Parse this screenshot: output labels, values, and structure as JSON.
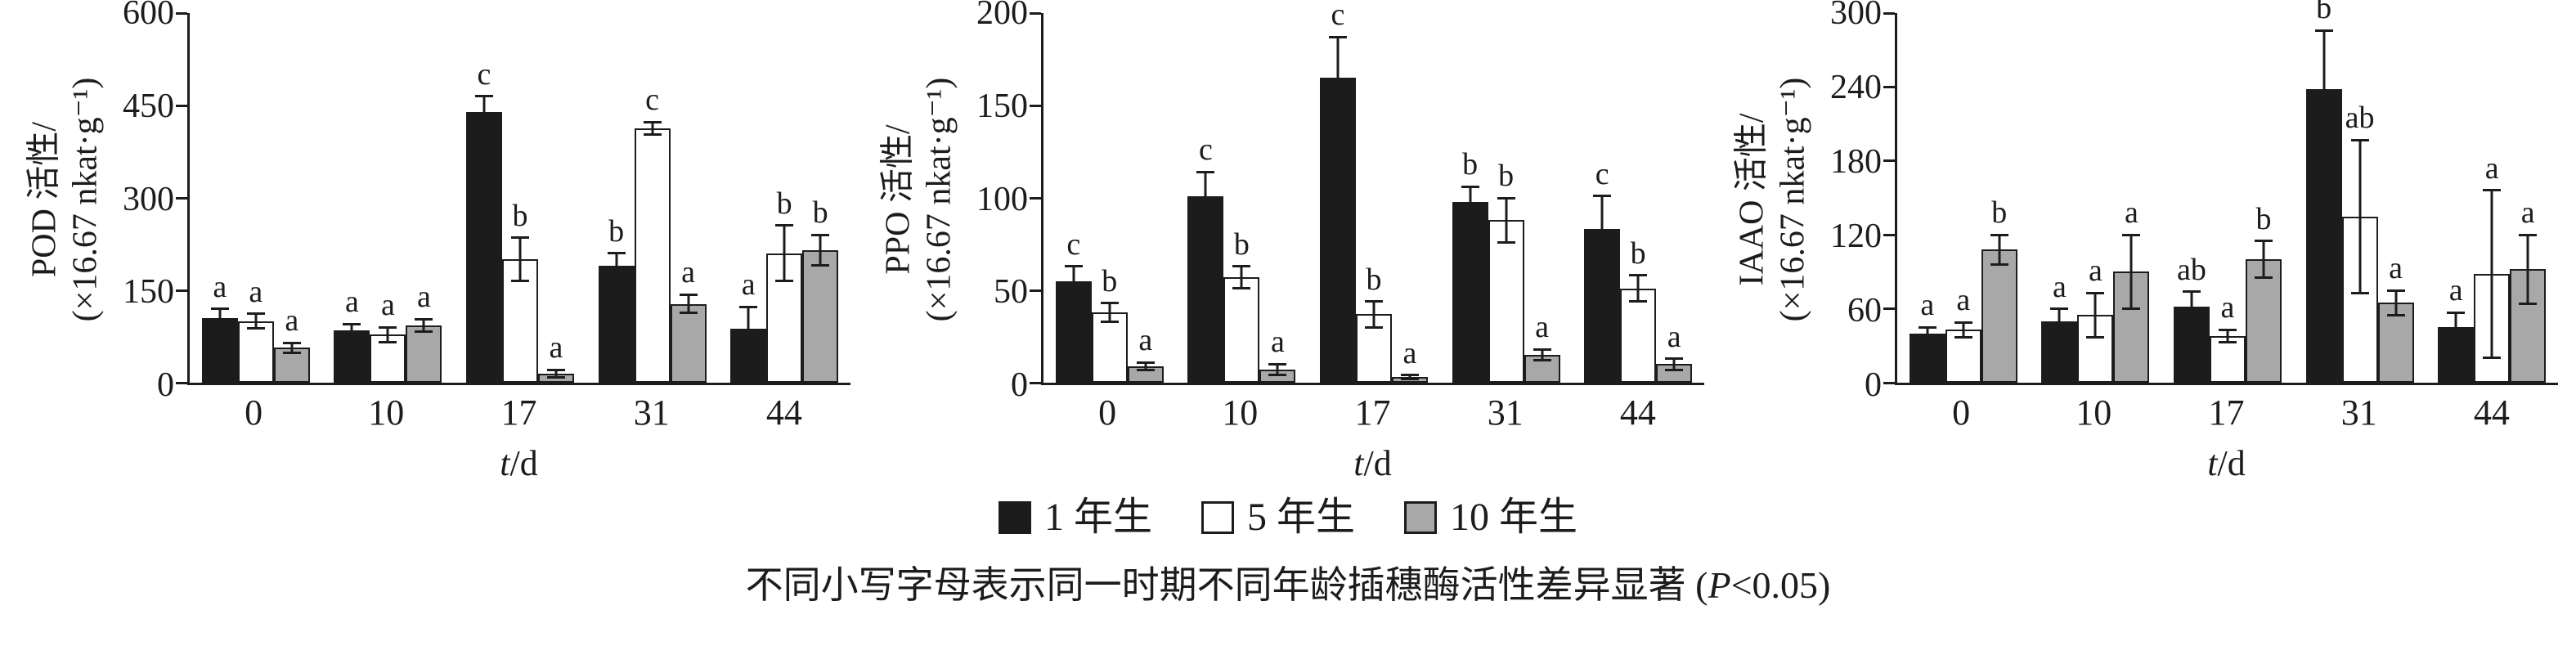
{
  "legend": {
    "items": [
      {
        "label": "1 年生",
        "color": "#1c1c1c",
        "border": "#1c1c1c"
      },
      {
        "label": "5 年生",
        "color": "#ffffff",
        "border": "#1c1c1c"
      },
      {
        "label": "10 年生",
        "color": "#a8a8a8",
        "border": "#1c1c1c"
      }
    ]
  },
  "caption": {
    "prefix": "不同小写字母表示同一时期不同年龄插穗酶活性差异显著 (",
    "italic": "P",
    "suffix": "<0.05)"
  },
  "chart_data": [
    {
      "type": "bar",
      "title": "POD activity",
      "ylabel_line1": "POD 活性/",
      "ylabel_line2": "(×16.67 nkat·g⁻¹)",
      "xlabel_italic": "t",
      "xlabel_rest": "/d",
      "ylim": [
        0,
        600
      ],
      "yticks": [
        0,
        150,
        300,
        450,
        600
      ],
      "categories": [
        "0",
        "10",
        "17",
        "31",
        "44"
      ],
      "grid": false,
      "legend_position": "bottom",
      "series": [
        {
          "name": "1 年生",
          "color": "#1c1c1c",
          "values": [
            105,
            85,
            440,
            190,
            88
          ],
          "errors": [
            15,
            10,
            25,
            20,
            35
          ],
          "letters": [
            "a",
            "a",
            "c",
            "b",
            "a"
          ]
        },
        {
          "name": "5 年生",
          "color": "#ffffff",
          "values": [
            100,
            78,
            200,
            413,
            210
          ],
          "errors": [
            12,
            12,
            35,
            10,
            45
          ],
          "letters": [
            "a",
            "a",
            "b",
            "c",
            "b"
          ]
        },
        {
          "name": "10 年生",
          "color": "#a8a8a8",
          "values": [
            57,
            93,
            15,
            128,
            215
          ],
          "errors": [
            8,
            10,
            6,
            15,
            25
          ],
          "letters": [
            "a",
            "a",
            "a",
            "a",
            "b"
          ]
        }
      ]
    },
    {
      "type": "bar",
      "title": "PPO activity",
      "ylabel_line1": "PPO 活性/",
      "ylabel_line2": "(×16.67 nkat·g⁻¹)",
      "xlabel_italic": "t",
      "xlabel_rest": "/d",
      "ylim": [
        0,
        200
      ],
      "yticks": [
        0,
        50,
        100,
        150,
        200
      ],
      "categories": [
        "0",
        "10",
        "17",
        "31",
        "44"
      ],
      "grid": false,
      "legend_position": "bottom",
      "series": [
        {
          "name": "1 年生",
          "color": "#1c1c1c",
          "values": [
            55,
            101,
            165,
            98,
            83
          ],
          "errors": [
            8,
            13,
            22,
            8,
            18
          ],
          "letters": [
            "c",
            "c",
            "c",
            "b",
            "c"
          ]
        },
        {
          "name": "5 年生",
          "color": "#ffffff",
          "values": [
            38,
            57,
            37,
            88,
            51
          ],
          "errors": [
            5,
            6,
            7,
            12,
            7
          ],
          "letters": [
            "b",
            "b",
            "b",
            "b",
            "b"
          ]
        },
        {
          "name": "10 年生",
          "color": "#a8a8a8",
          "values": [
            9,
            7,
            3,
            15,
            10
          ],
          "errors": [
            2,
            3,
            1,
            3,
            3
          ],
          "letters": [
            "a",
            "a",
            "a",
            "a",
            "a"
          ]
        }
      ]
    },
    {
      "type": "bar",
      "title": "IAAO activity",
      "ylabel_line1": "IAAO 活性/",
      "ylabel_line2": "(×16.67 nkat·g⁻¹)",
      "xlabel_italic": "t",
      "xlabel_rest": "/d",
      "ylim": [
        0,
        300
      ],
      "yticks": [
        0,
        60,
        120,
        180,
        240,
        300
      ],
      "categories": [
        "0",
        "10",
        "17",
        "31",
        "44"
      ],
      "grid": false,
      "legend_position": "bottom",
      "series": [
        {
          "name": "1 年生",
          "color": "#1c1c1c",
          "values": [
            40,
            50,
            62,
            238,
            45
          ],
          "errors": [
            5,
            10,
            12,
            48,
            12
          ],
          "letters": [
            "a",
            "a",
            "ab",
            "b",
            "a"
          ]
        },
        {
          "name": "5 年生",
          "color": "#ffffff",
          "values": [
            43,
            55,
            38,
            135,
            88
          ],
          "errors": [
            6,
            18,
            5,
            62,
            68
          ],
          "letters": [
            "a",
            "a",
            "a",
            "ab",
            "a"
          ]
        },
        {
          "name": "10 年生",
          "color": "#a8a8a8",
          "values": [
            108,
            90,
            100,
            65,
            92
          ],
          "errors": [
            12,
            30,
            15,
            10,
            28
          ],
          "letters": [
            "b",
            "a",
            "b",
            "a",
            "a"
          ]
        }
      ]
    }
  ]
}
